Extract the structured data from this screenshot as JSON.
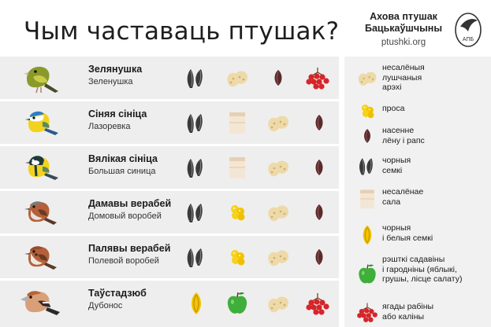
{
  "header": {
    "title": "Чым частаваць птушак?",
    "org_line1": "Ахова птушак",
    "org_line2": "Бацькаўшчыны",
    "url": "ptushki.org",
    "logo_text": "АПБ"
  },
  "birds": [
    {
      "name": "Зелянушка",
      "name_ru": "Зеленушка"
    },
    {
      "name": "Сіняя сініца",
      "name_ru": "Лазоревка"
    },
    {
      "name": "Вялікая  сініца",
      "name_ru": "Большая синица"
    },
    {
      "name": "Дамавы верабей",
      "name_ru": "Домовый воробей"
    },
    {
      "name": "Палявы верабей",
      "name_ru": "Полевой воробей"
    },
    {
      "name": "Таўстадзюб",
      "name_ru": "Дубонос"
    }
  ],
  "legend": [
    {
      "label": "несалёныя\nлушчаныя\nарэхі",
      "icon": "peanut-icon"
    },
    {
      "label": "проса",
      "icon": "millet-icon"
    },
    {
      "label": "насенне\nлёну і рапс",
      "icon": "flax-seed-icon"
    },
    {
      "label": "чорныя\nсемкі",
      "icon": "black-sunflower-seeds-icon"
    },
    {
      "label": "несалёнае\nсала",
      "icon": "lard-icon"
    },
    {
      "label": "чорныя\nі белыя семкі",
      "icon": "striped-seed-icon"
    },
    {
      "label": "рэштĸі садавіны\nі гародніны (яблыкі,\nгрушы, лісце салату)",
      "icon": "apple-icon"
    },
    {
      "label": "ягады рабіны\nабо каліны",
      "icon": "rowan-berries-icon"
    }
  ],
  "colors": {
    "row_bg": "#eeeeee",
    "legend_bg": "#f1f1f1",
    "peanut": "#eed9a8",
    "millet": "#f6d21a",
    "seed_dark": "#3a3a3a",
    "berry": "#d6252a",
    "apple": "#3fae3a",
    "lard": "#f4e6d4"
  }
}
